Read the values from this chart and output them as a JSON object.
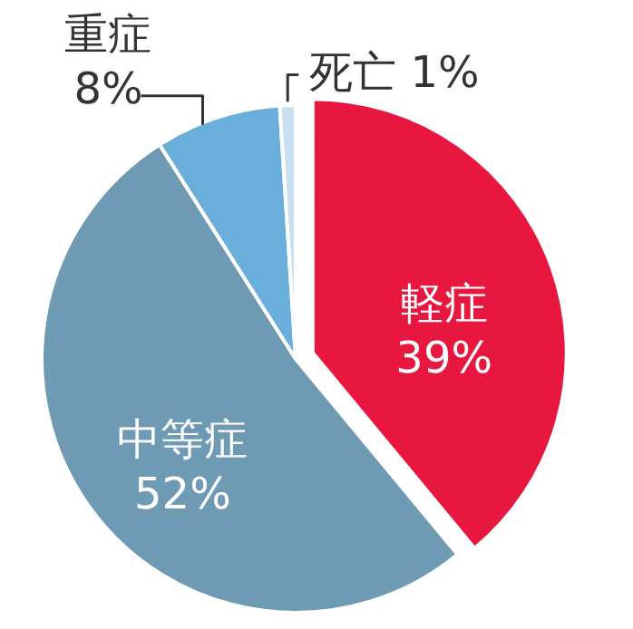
{
  "chart_data": {
    "type": "pie",
    "categories": [
      "軽症",
      "中等症",
      "重症",
      "死亡"
    ],
    "values": [
      39,
      52,
      8,
      1
    ],
    "colors": [
      "#e8173f",
      "#6f9ab3",
      "#6aaedb",
      "#c8e0f0"
    ],
    "value_labels": [
      "39%",
      "52%",
      "8%",
      "1%"
    ]
  }
}
